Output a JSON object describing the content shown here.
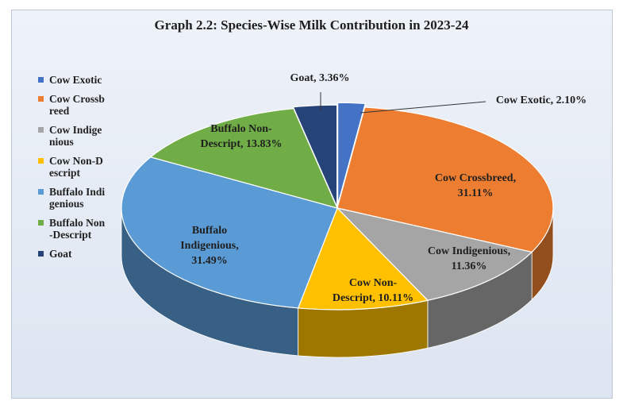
{
  "chart_data": {
    "type": "pie",
    "title": "Graph 2.2:  Species-Wise Milk Contribution in 2023-24",
    "legend_position": "left",
    "unit": "%",
    "slices": [
      {
        "name": "Cow Exotic",
        "value": 2.1,
        "label": [
          "Cow Exotic, 2.10%"
        ],
        "color": "#4472c4"
      },
      {
        "name": "Cow Crossbreed",
        "value": 31.11,
        "label": [
          "Cow Crossbreed,",
          "31.11%"
        ],
        "color": "#ed7d31"
      },
      {
        "name": "Cow Indigenious",
        "value": 11.36,
        "label": [
          "Cow Indigenious,",
          "11.36%"
        ],
        "color": "#a5a5a5"
      },
      {
        "name": "Cow Non-Descript",
        "value": 10.11,
        "label": [
          "Cow Non-",
          "Descript, 10.11%"
        ],
        "color": "#ffc000"
      },
      {
        "name": "Buffalo Indigenious",
        "value": 31.49,
        "label": [
          "Buffalo",
          "Indigenious,",
          "31.49%"
        ],
        "color": "#5b9bd5"
      },
      {
        "name": "Buffalo Non-Descript",
        "value": 13.83,
        "label": [
          "Buffalo Non-",
          "Descript, 13.83%"
        ],
        "color": "#70ad47"
      },
      {
        "name": "Goat",
        "value": 3.36,
        "label": [
          "Goat, 3.36%"
        ],
        "color": "#264478"
      }
    ],
    "legend": [
      "Cow Exotic",
      "Cow Crossbreed",
      "Cow Indigenious",
      "Cow Non-Descript",
      "Buffalo Indigenious",
      "Buffalo Non-Descript",
      "Goat"
    ]
  }
}
